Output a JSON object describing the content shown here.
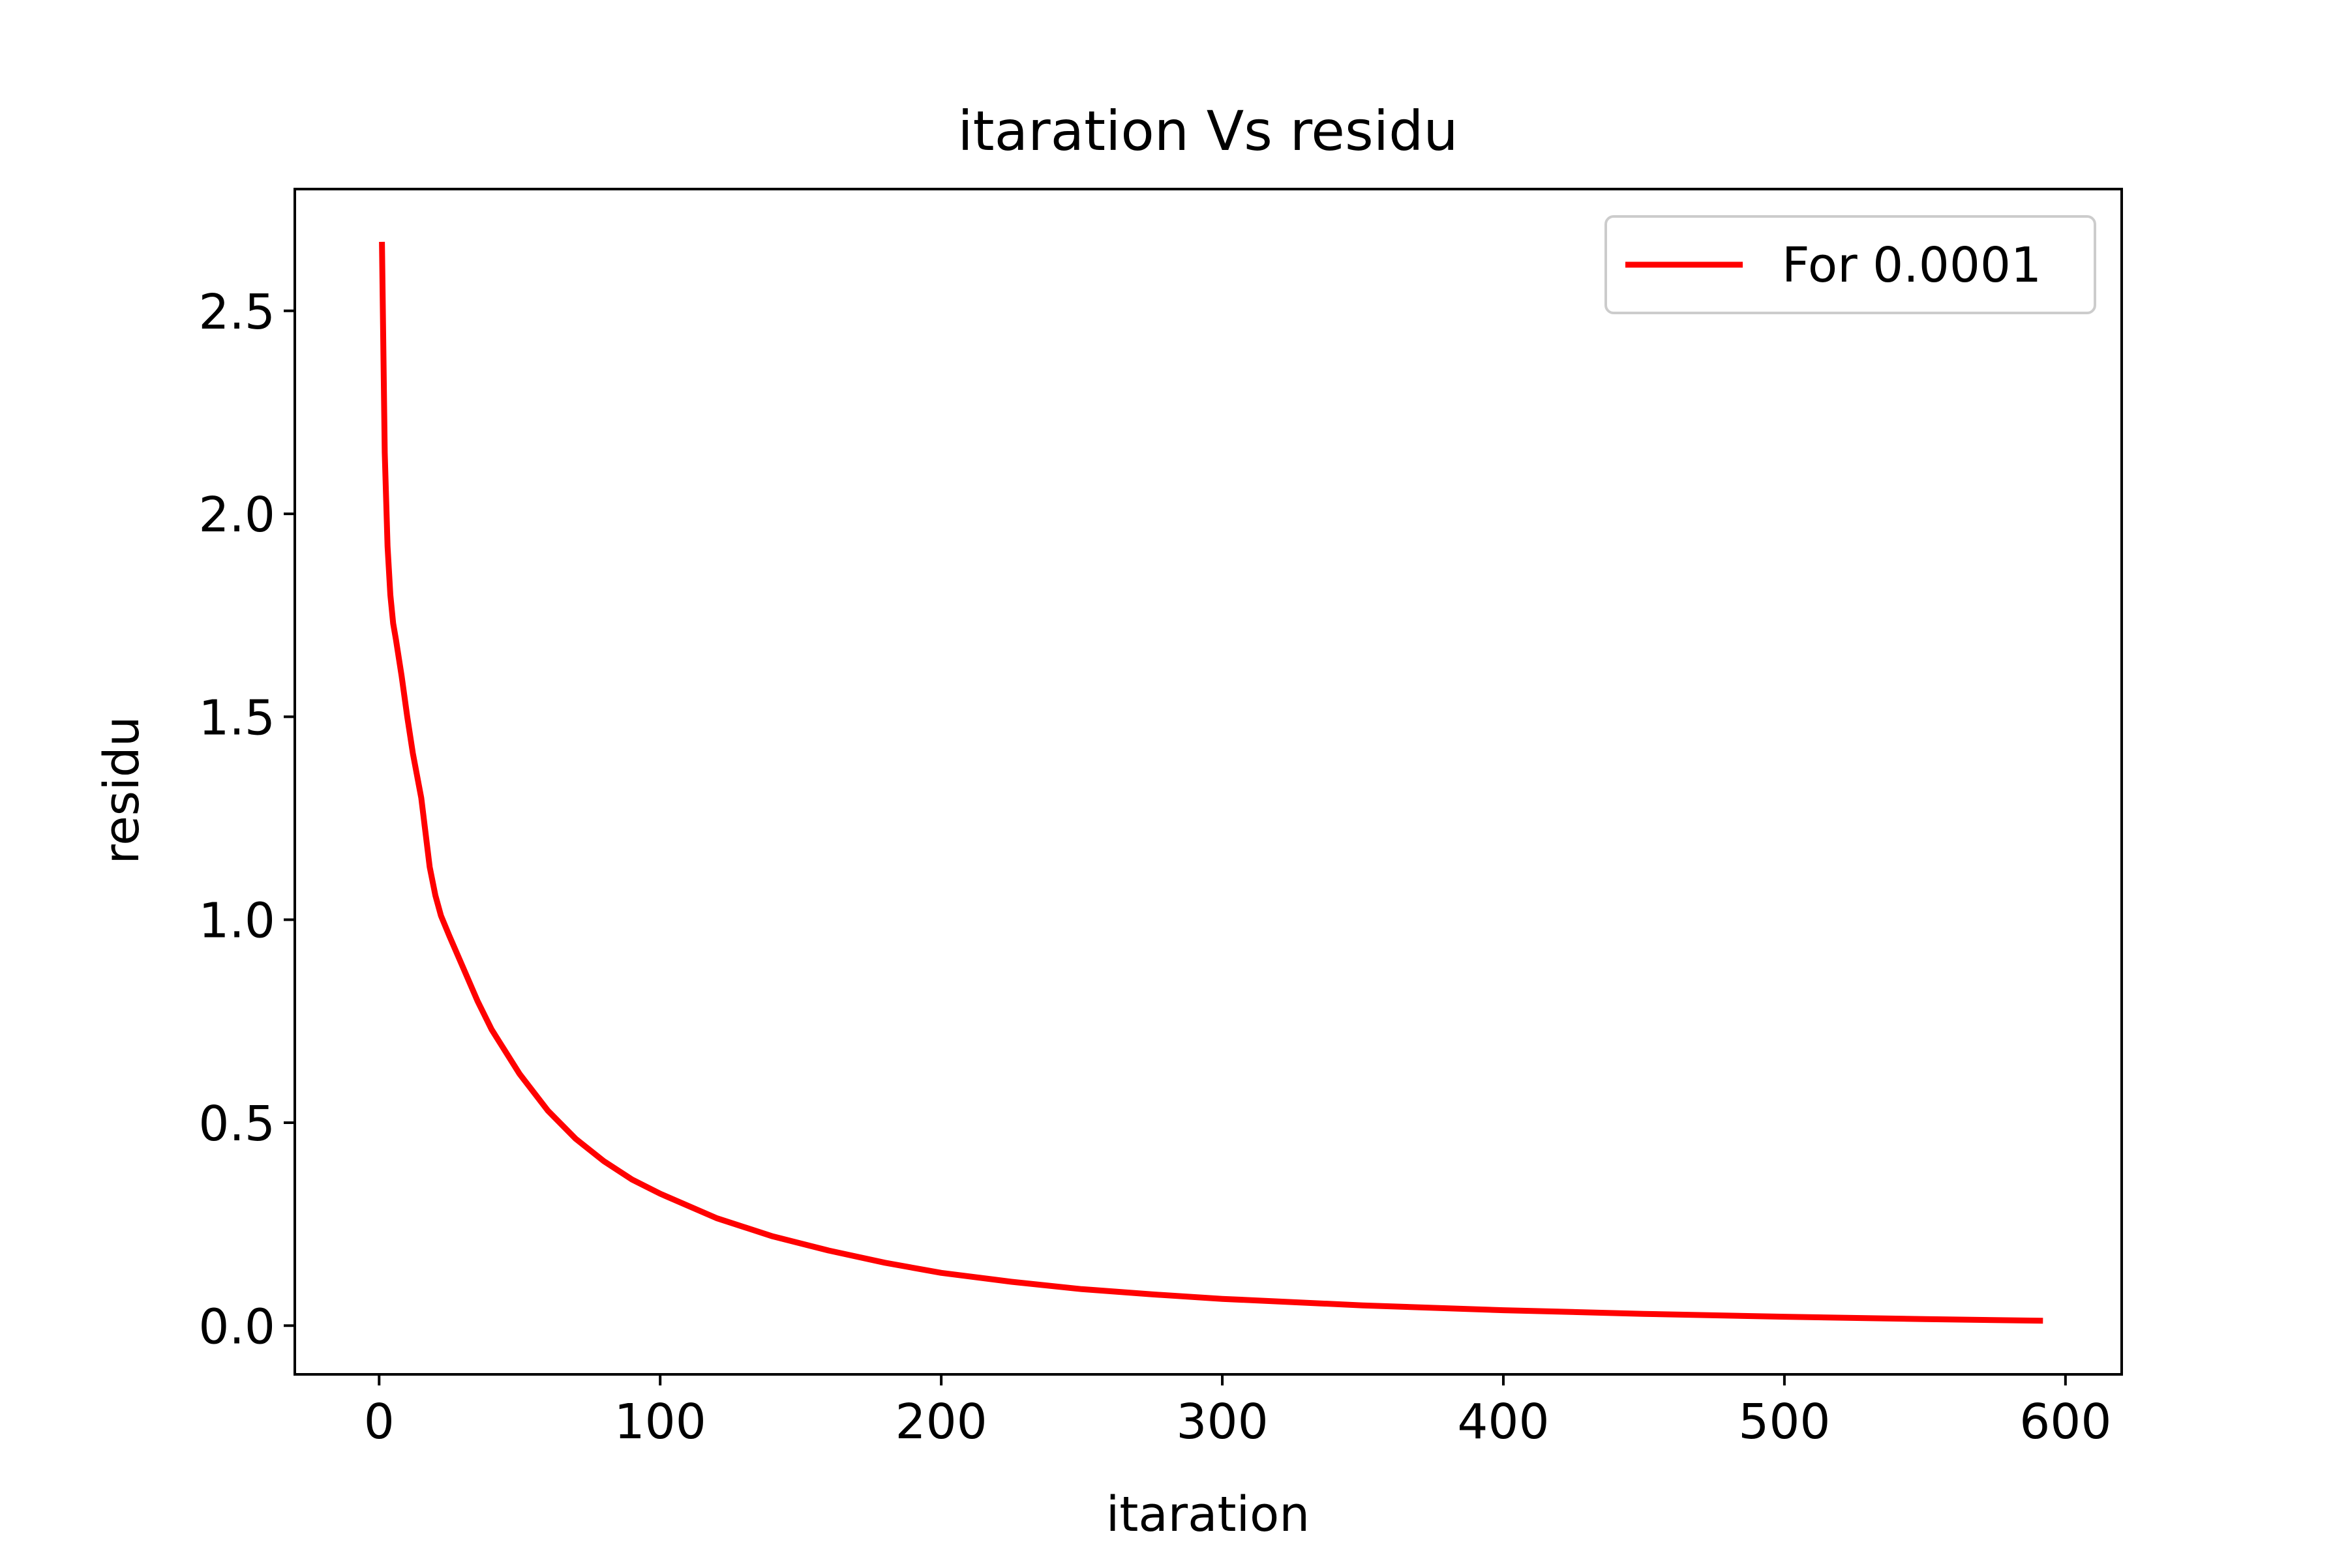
{
  "chart_data": {
    "type": "line",
    "title": "itaration Vs residu",
    "xlabel": "itaration",
    "ylabel": "residu",
    "xlim": [
      -30,
      620
    ],
    "ylim": [
      -0.12,
      2.8
    ],
    "xticks": [
      0,
      100,
      200,
      300,
      400,
      500,
      600
    ],
    "xtick_labels": [
      "0",
      "100",
      "200",
      "300",
      "400",
      "500",
      "600"
    ],
    "yticks": [
      0.0,
      0.5,
      1.0,
      1.5,
      2.0,
      2.5
    ],
    "ytick_labels": [
      "0.0",
      "0.5",
      "1.0",
      "1.5",
      "2.0",
      "2.5"
    ],
    "grid": false,
    "legend_position": "upper right",
    "series": [
      {
        "name": "For 0.0001",
        "color": "#ff0000",
        "x": [
          1,
          2,
          3,
          4,
          5,
          6,
          8,
          10,
          12,
          15,
          18,
          20,
          22,
          25,
          30,
          35,
          40,
          50,
          60,
          70,
          80,
          90,
          100,
          120,
          140,
          160,
          180,
          200,
          225,
          250,
          275,
          300,
          350,
          400,
          450,
          500,
          550,
          592
        ],
        "y": [
          2.67,
          2.15,
          1.92,
          1.8,
          1.73,
          1.69,
          1.6,
          1.5,
          1.41,
          1.3,
          1.13,
          1.06,
          1.01,
          0.96,
          0.88,
          0.8,
          0.73,
          0.62,
          0.53,
          0.46,
          0.405,
          0.36,
          0.325,
          0.265,
          0.22,
          0.185,
          0.155,
          0.13,
          0.108,
          0.09,
          0.077,
          0.066,
          0.05,
          0.038,
          0.029,
          0.022,
          0.016,
          0.012
        ]
      }
    ]
  }
}
